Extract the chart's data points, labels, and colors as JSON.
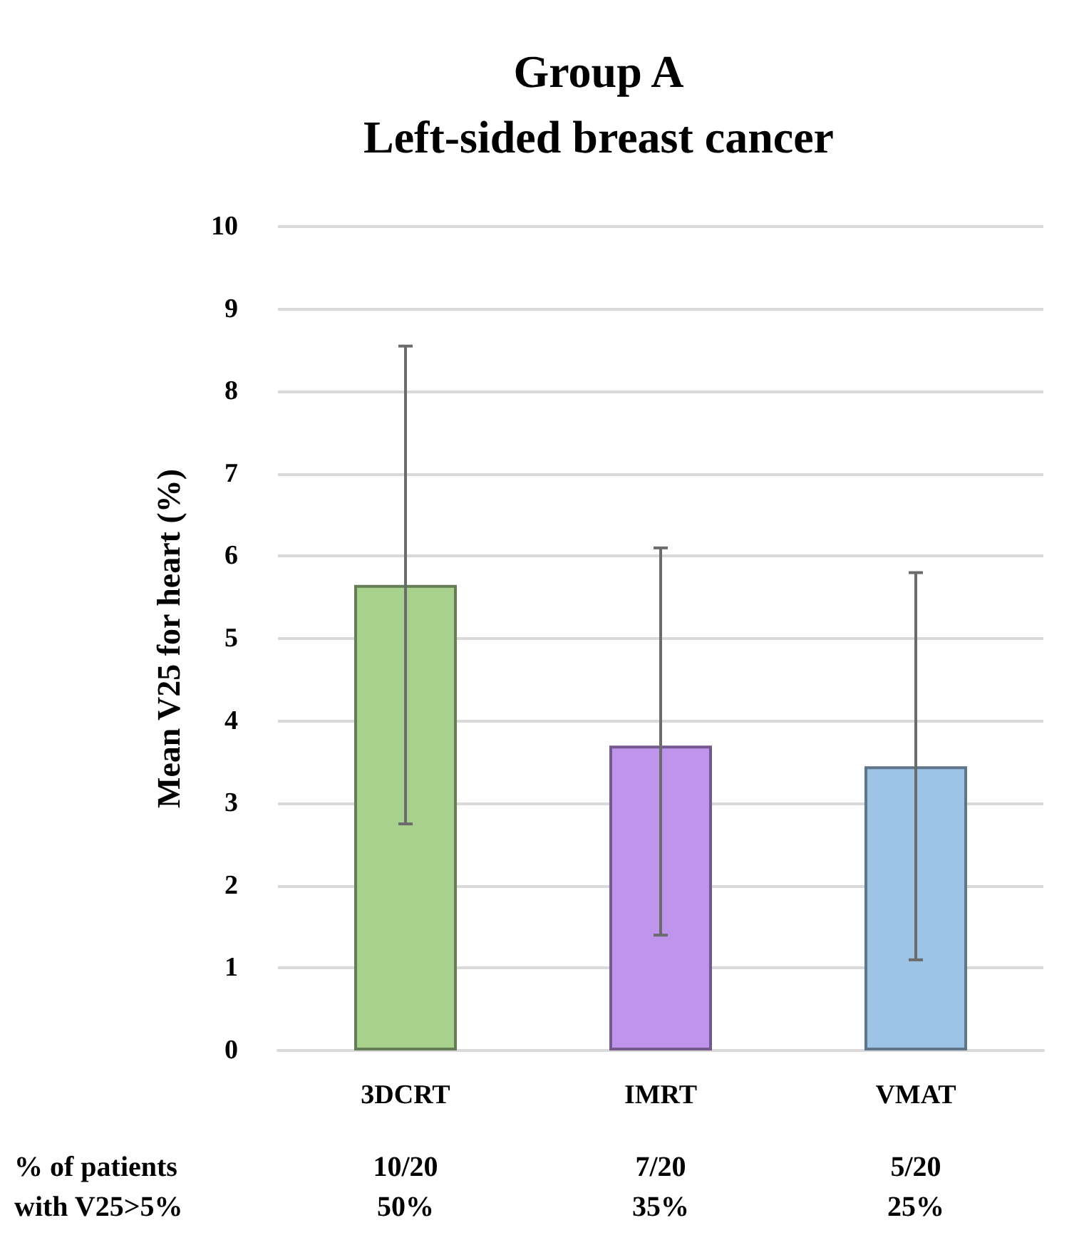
{
  "chart_data": {
    "type": "bar",
    "title": "Group A\nLeft-sided breast cancer",
    "ylabel": "Mean V25 for heart (%)",
    "categories": [
      "3DCRT",
      "IMRT",
      "VMAT"
    ],
    "values": [
      5.65,
      3.7,
      3.45
    ],
    "colors": [
      "#a9d18e",
      "#bf94ed",
      "#9dc3e6"
    ],
    "errors": [
      [
        2.75,
        8.55
      ],
      [
        1.4,
        6.1
      ],
      [
        1.1,
        5.8
      ]
    ],
    "ylim": [
      0,
      10
    ],
    "yticks": [
      0,
      1,
      2,
      3,
      4,
      5,
      6,
      7,
      8,
      9,
      10
    ],
    "grid": "y",
    "annotations": [
      "% of patients\nwith V25>5%",
      "10/20\n50%",
      "7/20\n35%",
      "5/20\n25%"
    ]
  }
}
